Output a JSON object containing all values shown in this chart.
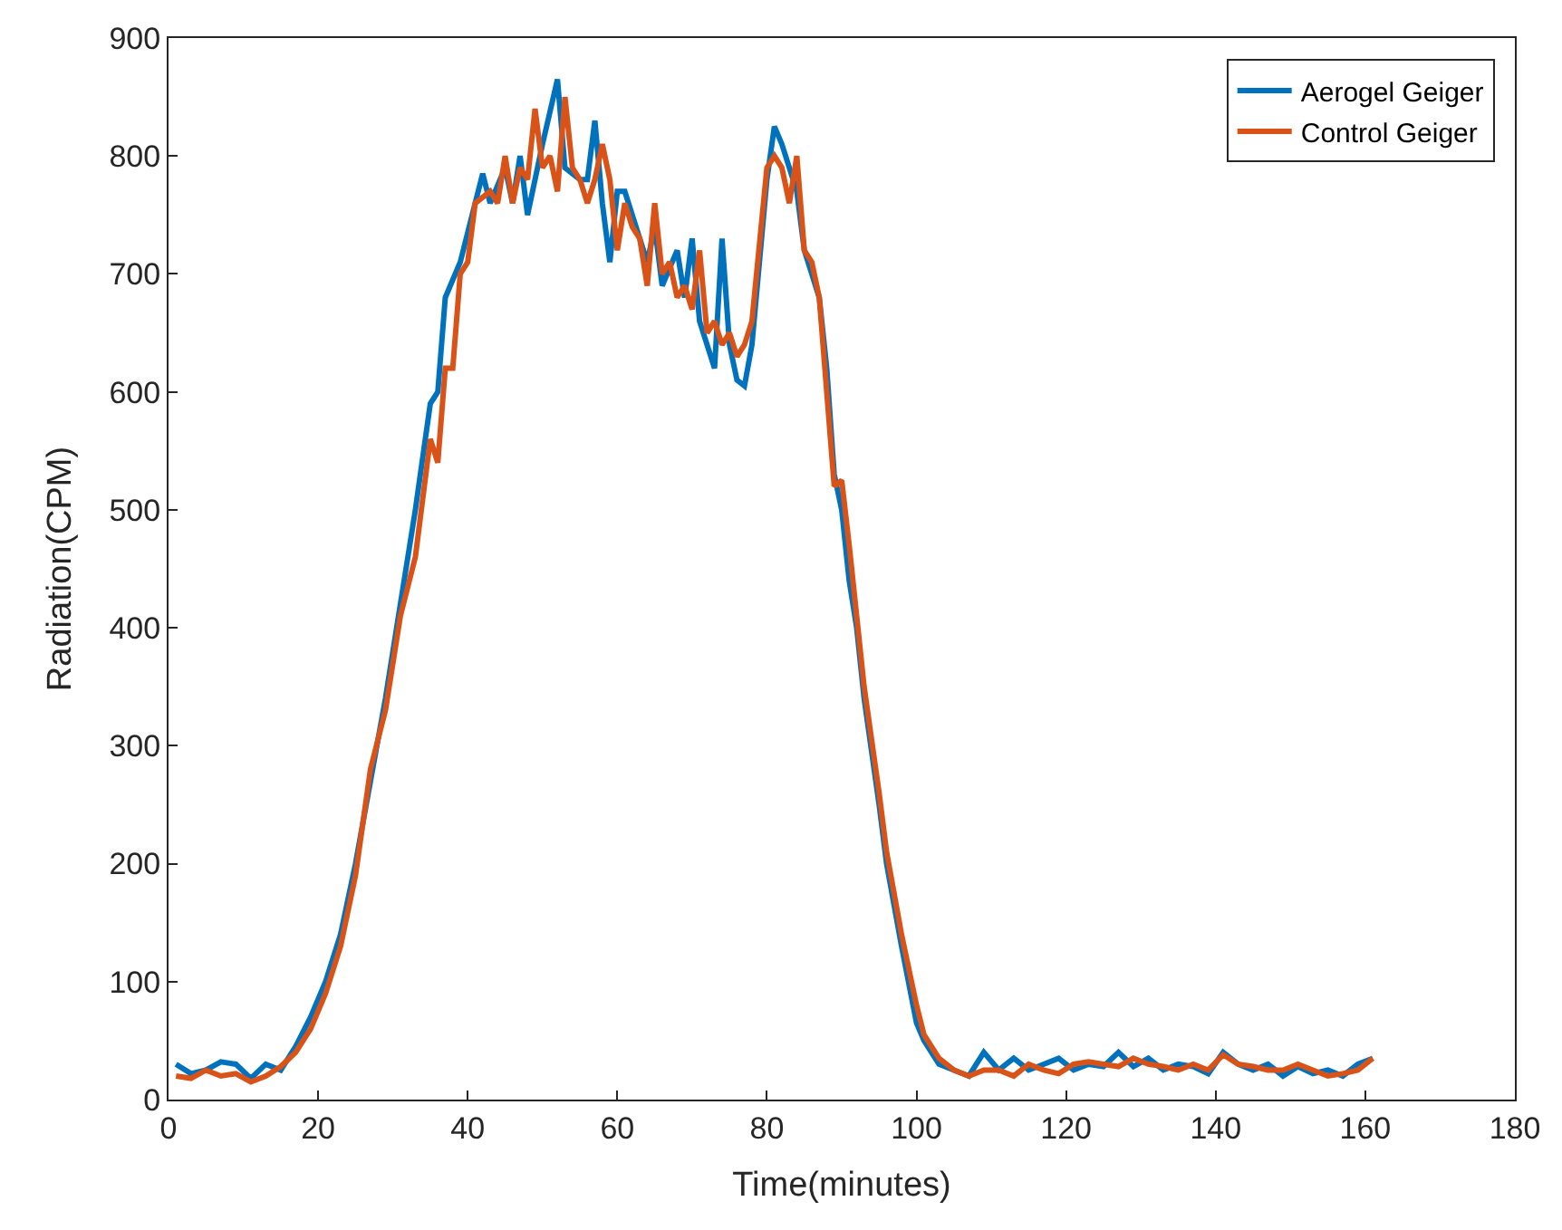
{
  "chart_data": {
    "type": "line",
    "xlabel": "Time(minutes)",
    "ylabel": "Radiation(CPM)",
    "xlim": [
      0,
      180
    ],
    "xticks": [
      0,
      20,
      40,
      60,
      80,
      100,
      120,
      140,
      160,
      180
    ],
    "ylim": [
      0,
      900
    ],
    "yticks": [
      0,
      100,
      200,
      300,
      400,
      500,
      600,
      700,
      800,
      900
    ],
    "grid": false,
    "legend": "top right",
    "marker": "none",
    "line_style": "solid",
    "series": [
      {
        "name": "Aerogel Geiger",
        "color": "#0072bd",
        "x": [
          1,
          3,
          5,
          7,
          9,
          11,
          13,
          15,
          17,
          19,
          21,
          23,
          25,
          27,
          29,
          31,
          33,
          35,
          36,
          37,
          39,
          41,
          42,
          43,
          45,
          46,
          47,
          48,
          50,
          52,
          53,
          55,
          56,
          57,
          58,
          59,
          60,
          61,
          62,
          64,
          65,
          66,
          68,
          69,
          70,
          71,
          72,
          73,
          74,
          75,
          76,
          77,
          78,
          80,
          81,
          82,
          84,
          85,
          86,
          87,
          88,
          89,
          90,
          91,
          92,
          93,
          95,
          96,
          98,
          100,
          101,
          103,
          105,
          107,
          109,
          111,
          113,
          115,
          117,
          119,
          121,
          123,
          125,
          127,
          129,
          131,
          133,
          135,
          137,
          139,
          141,
          143,
          145,
          147,
          149,
          151,
          153,
          155,
          157,
          159,
          161
        ],
        "values": [
          30,
          22,
          25,
          32,
          30,
          18,
          30,
          25,
          45,
          70,
          100,
          140,
          200,
          270,
          340,
          420,
          500,
          590,
          600,
          680,
          710,
          760,
          785,
          760,
          790,
          760,
          800,
          750,
          810,
          865,
          790,
          780,
          780,
          830,
          760,
          710,
          770,
          770,
          750,
          710,
          740,
          690,
          720,
          680,
          730,
          660,
          640,
          620,
          730,
          640,
          610,
          605,
          640,
          780,
          825,
          810,
          770,
          720,
          700,
          680,
          620,
          530,
          500,
          440,
          400,
          340,
          250,
          200,
          130,
          65,
          50,
          30,
          25,
          20,
          40,
          25,
          35,
          25,
          30,
          35,
          25,
          30,
          28,
          40,
          28,
          35,
          25,
          30,
          28,
          22,
          40,
          30,
          25,
          30,
          20,
          28,
          22,
          25,
          20,
          30,
          35
        ]
      },
      {
        "name": "Control Geiger",
        "color": "#d95319",
        "x": [
          1,
          3,
          5,
          7,
          9,
          11,
          13,
          15,
          17,
          19,
          21,
          23,
          25,
          27,
          29,
          31,
          33,
          35,
          36,
          37,
          38,
          39,
          40,
          41,
          43,
          44,
          45,
          46,
          47,
          48,
          49,
          50,
          51,
          52,
          53,
          54,
          55,
          56,
          57,
          58,
          59,
          60,
          61,
          62,
          63,
          64,
          65,
          66,
          67,
          68,
          69,
          70,
          71,
          72,
          73,
          74,
          75,
          76,
          77,
          78,
          80,
          81,
          82,
          83,
          84,
          85,
          86,
          87,
          88,
          89,
          90,
          91,
          92,
          93,
          95,
          96,
          98,
          100,
          101,
          103,
          105,
          107,
          109,
          111,
          113,
          115,
          117,
          119,
          121,
          123,
          125,
          127,
          129,
          131,
          133,
          135,
          137,
          139,
          141,
          143,
          145,
          147,
          149,
          151,
          153,
          155,
          157,
          159,
          161
        ],
        "values": [
          20,
          18,
          25,
          20,
          22,
          15,
          20,
          28,
          40,
          60,
          90,
          130,
          190,
          280,
          330,
          410,
          460,
          560,
          540,
          620,
          620,
          700,
          710,
          760,
          770,
          760,
          800,
          760,
          790,
          780,
          840,
          790,
          800,
          770,
          850,
          790,
          780,
          760,
          780,
          810,
          780,
          720,
          760,
          740,
          730,
          690,
          760,
          700,
          710,
          680,
          690,
          670,
          720,
          650,
          660,
          640,
          650,
          630,
          640,
          660,
          790,
          800,
          790,
          760,
          800,
          720,
          710,
          680,
          600,
          520,
          525,
          470,
          410,
          350,
          260,
          210,
          140,
          80,
          55,
          35,
          25,
          20,
          25,
          25,
          20,
          30,
          25,
          22,
          30,
          32,
          30,
          28,
          35,
          30,
          28,
          25,
          30,
          25,
          38,
          30,
          28,
          25,
          25,
          30,
          25,
          20,
          22,
          25,
          35
        ]
      }
    ]
  }
}
